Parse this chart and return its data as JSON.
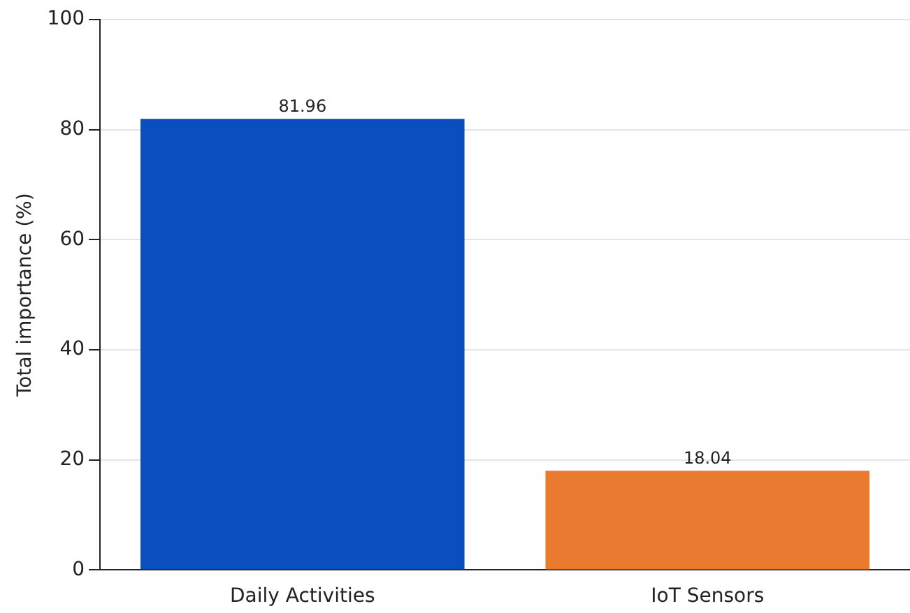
{
  "chart_data": {
    "type": "bar",
    "ylabel": "Total importance (%)",
    "categories": [
      "Daily Activities",
      "IoT Sensors"
    ],
    "values": [
      81.96,
      18.04
    ],
    "colors": [
      "#0b4fbf",
      "#ea7a2f"
    ],
    "ylim": [
      0,
      100
    ],
    "yticks": [
      0,
      20,
      40,
      60,
      80,
      100
    ],
    "grid": "y",
    "data_labels": true,
    "legend": false
  }
}
